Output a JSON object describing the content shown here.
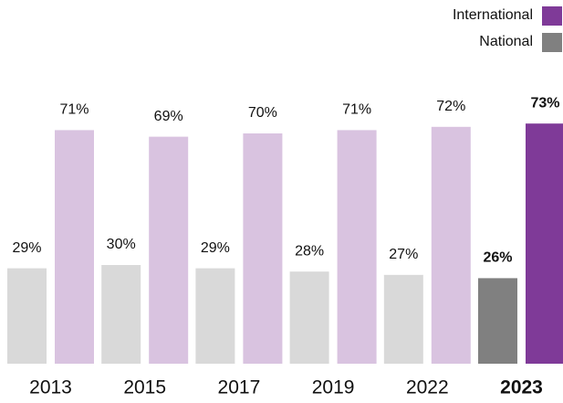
{
  "chart_data": {
    "type": "bar",
    "categories": [
      "2013",
      "2015",
      "2017",
      "2019",
      "2022",
      "2023"
    ],
    "highlight": "2023",
    "series": [
      {
        "name": "National",
        "color": "#808080",
        "muted_color": "#d9d9d9",
        "values": [
          29,
          30,
          29,
          28,
          27,
          26
        ],
        "value_labels": [
          "29%",
          "30%",
          "29%",
          "28%",
          "27%",
          "26%"
        ]
      },
      {
        "name": "International",
        "color": "#7f3a98",
        "muted_color": "#d9c3e0",
        "values": [
          71,
          69,
          70,
          71,
          72,
          73
        ],
        "value_labels": [
          "71%",
          "69%",
          "70%",
          "71%",
          "72%",
          "73%"
        ]
      }
    ],
    "legend": "top-right"
  }
}
